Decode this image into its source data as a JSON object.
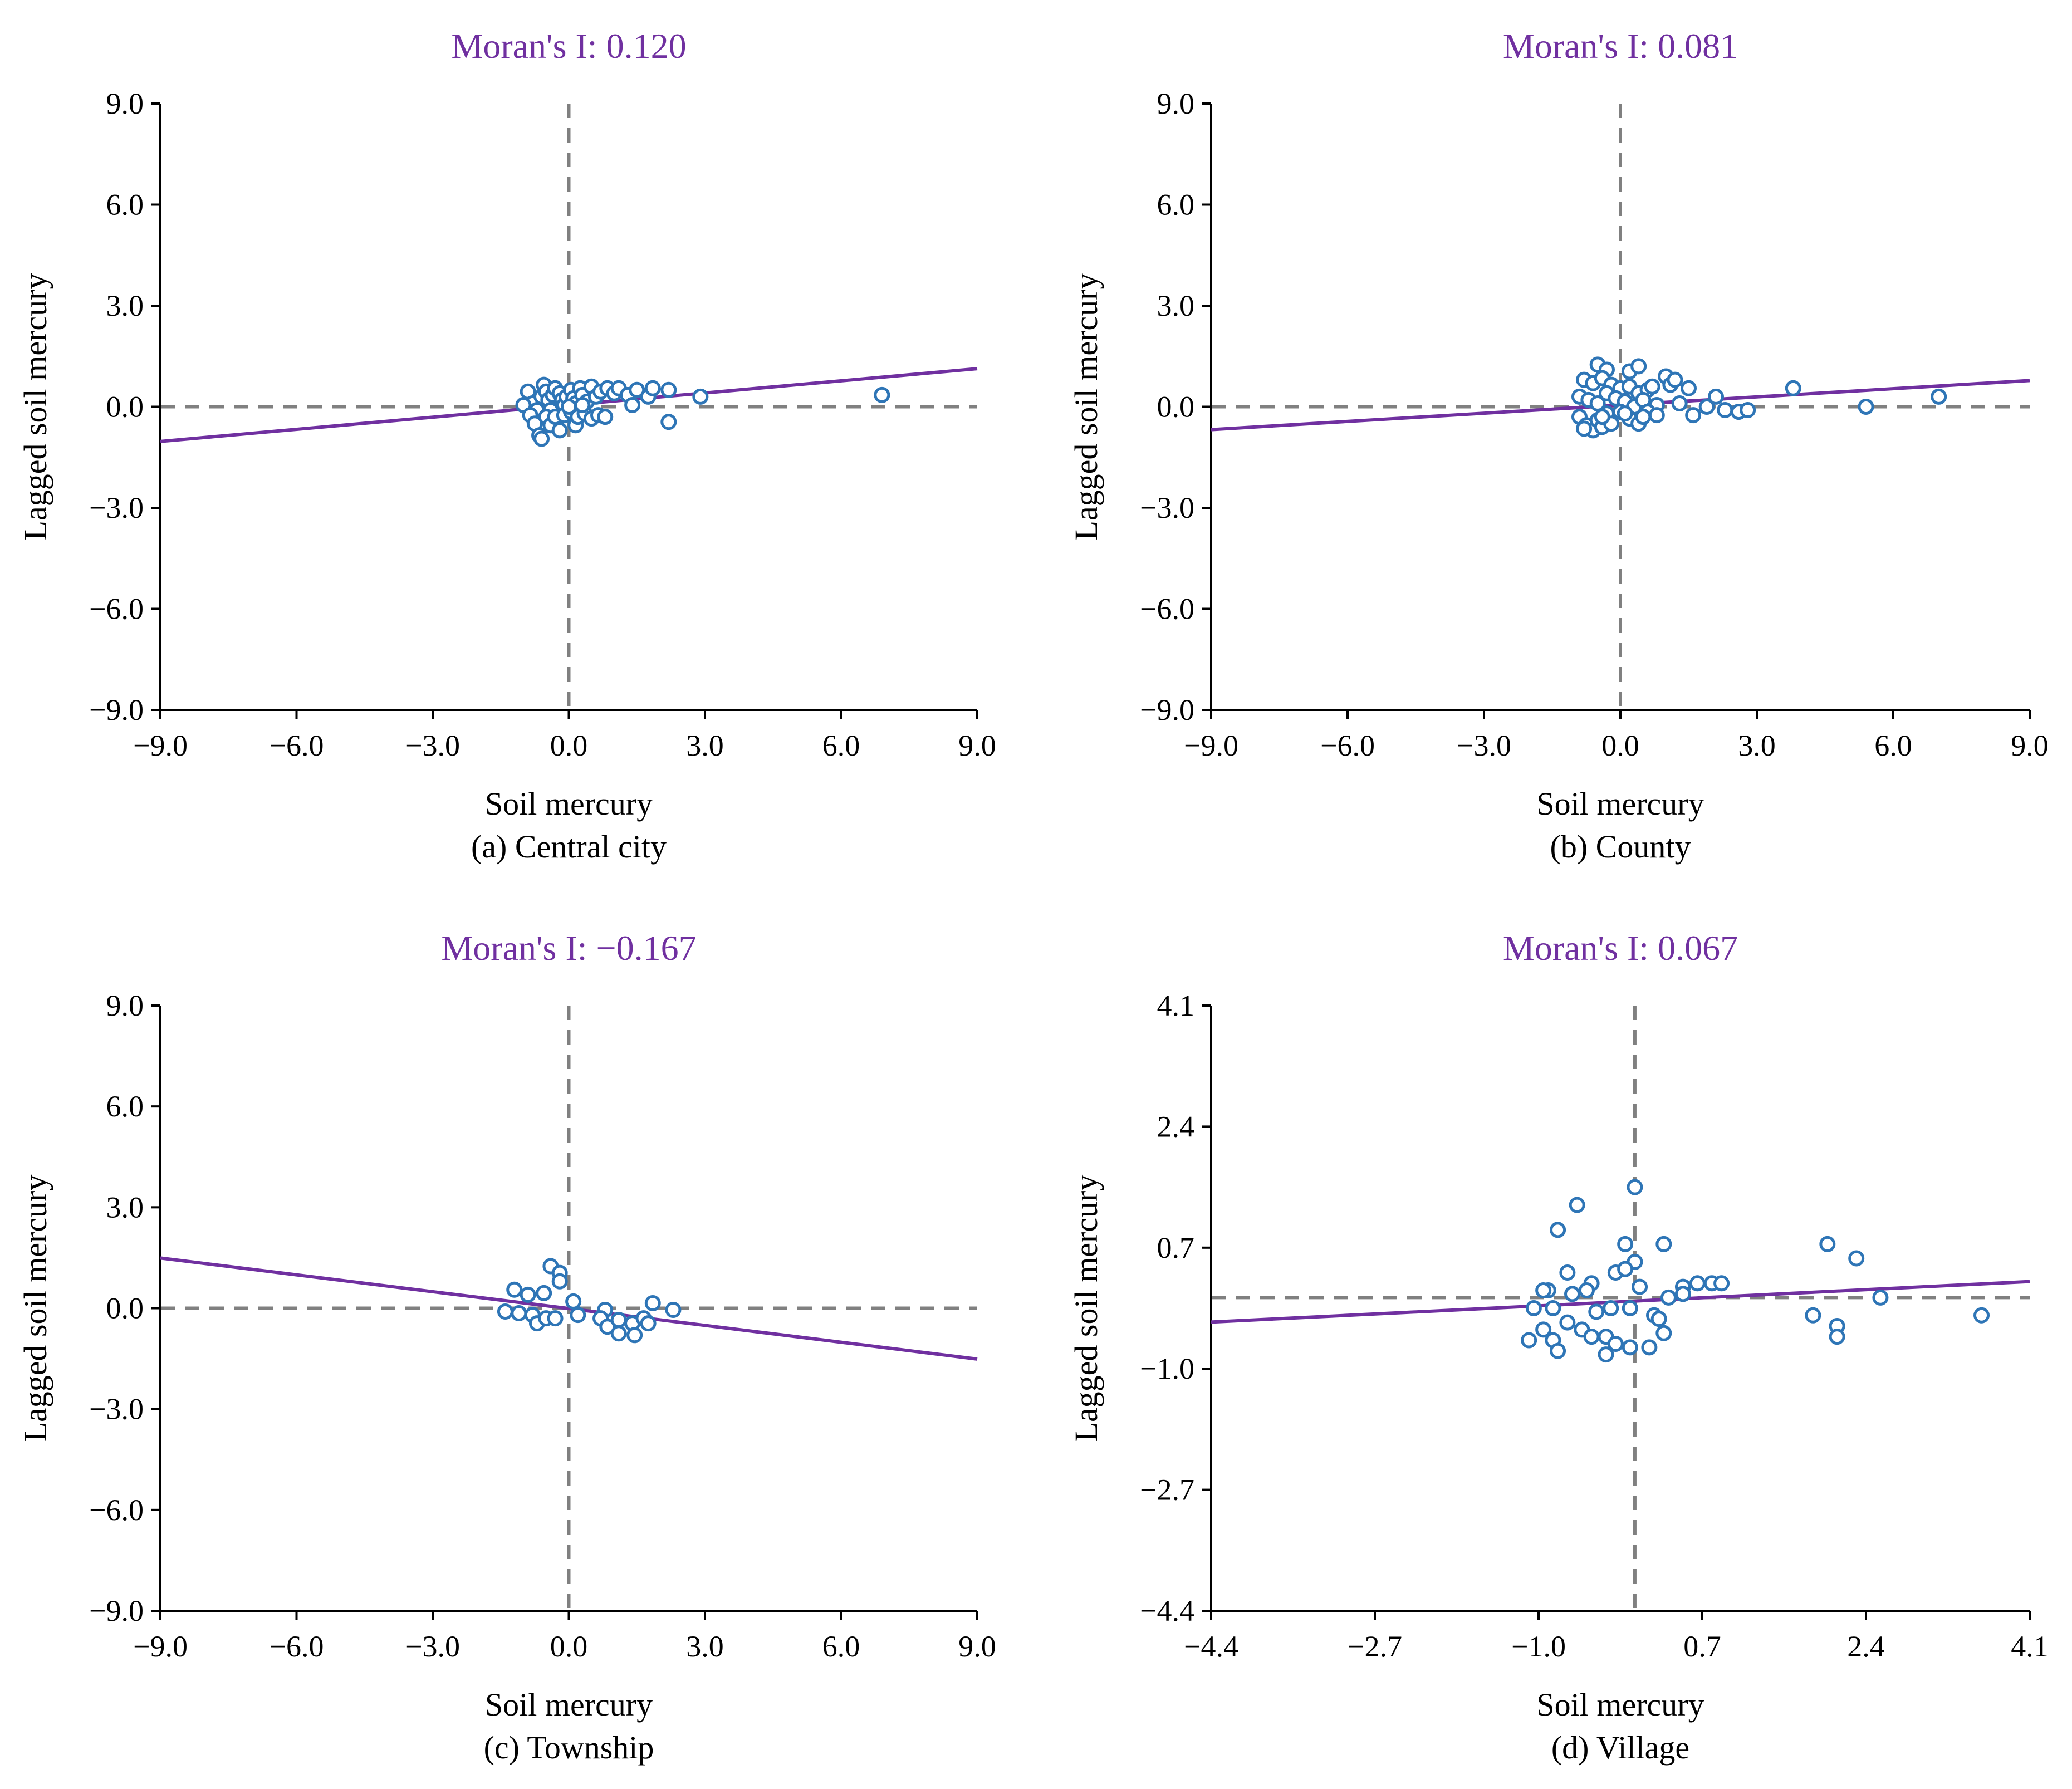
{
  "style": {
    "accent_color": "#7030A0",
    "point_color": "#2E75B6",
    "reference_line_color": "#808080",
    "axis_color": "#000000"
  },
  "chart_data": [
    {
      "type": "scatter",
      "title": "Moran's I: 0.120",
      "caption": "(a) Central city",
      "xlabel": "Soil mercury",
      "ylabel": "Lagged soil mercury",
      "xlim": [
        -9.0,
        9.0
      ],
      "ylim": [
        -9.0,
        9.0
      ],
      "xticks": [
        -9.0,
        -6.0,
        -3.0,
        0.0,
        3.0,
        6.0,
        9.0
      ],
      "yticks": [
        -9.0,
        -6.0,
        -3.0,
        0.0,
        3.0,
        6.0,
        9.0
      ],
      "xtick_labels": [
        "−9.0",
        "−6.0",
        "−3.0",
        "0.0",
        "3.0",
        "6.0",
        "9.0"
      ],
      "ytick_labels": [
        "−9.0",
        "−6.0",
        "−3.0",
        "0.0",
        "3.0",
        "6.0",
        "9.0"
      ],
      "fit_line": {
        "slope": 0.12,
        "intercept": 0.05
      },
      "points": [
        [
          -0.9,
          0.45
        ],
        [
          -0.8,
          0.1
        ],
        [
          -0.7,
          -0.1
        ],
        [
          -0.6,
          0.3
        ],
        [
          -0.55,
          0.65
        ],
        [
          -0.5,
          0.45
        ],
        [
          -0.45,
          0.2
        ],
        [
          -0.4,
          -0.1
        ],
        [
          -0.35,
          0.35
        ],
        [
          -0.3,
          0.55
        ],
        [
          -0.2,
          0.4
        ],
        [
          -0.15,
          0.2
        ],
        [
          -0.1,
          0.05
        ],
        [
          -0.05,
          0.3
        ],
        [
          0.05,
          0.5
        ],
        [
          0.1,
          0.25
        ],
        [
          0.15,
          0.1
        ],
        [
          0.25,
          0.55
        ],
        [
          0.3,
          0.35
        ],
        [
          0.4,
          0.15
        ],
        [
          0.5,
          0.6
        ],
        [
          0.6,
          0.3
        ],
        [
          0.7,
          0.45
        ],
        [
          0.85,
          0.55
        ],
        [
          1.0,
          0.4
        ],
        [
          1.1,
          0.55
        ],
        [
          1.3,
          0.35
        ],
        [
          1.5,
          0.5
        ],
        [
          1.75,
          0.3
        ],
        [
          1.85,
          0.55
        ],
        [
          2.2,
          0.5
        ],
        [
          2.9,
          0.3
        ],
        [
          6.9,
          0.35
        ],
        [
          -1.0,
          0.05
        ],
        [
          -0.85,
          -0.25
        ],
        [
          -0.75,
          -0.5
        ],
        [
          -0.65,
          -0.85
        ],
        [
          -0.6,
          -0.95
        ],
        [
          -0.5,
          -0.3
        ],
        [
          -0.4,
          -0.55
        ],
        [
          -0.3,
          -0.3
        ],
        [
          -0.2,
          -0.7
        ],
        [
          -0.1,
          -0.25
        ],
        [
          0.05,
          -0.15
        ],
        [
          0.15,
          -0.55
        ],
        [
          0.2,
          -0.3
        ],
        [
          0.35,
          -0.2
        ],
        [
          0.5,
          -0.35
        ],
        [
          0.65,
          -0.25
        ],
        [
          0.8,
          -0.3
        ],
        [
          1.4,
          0.05
        ],
        [
          2.2,
          -0.45
        ],
        [
          0.0,
          0.0
        ],
        [
          0.3,
          0.05
        ]
      ]
    },
    {
      "type": "scatter",
      "title": "Moran's I: 0.081",
      "caption": "(b) County",
      "xlabel": "Soil mercury",
      "ylabel": "Lagged soil mercury",
      "xlim": [
        -9.0,
        9.0
      ],
      "ylim": [
        -9.0,
        9.0
      ],
      "xticks": [
        -9.0,
        -6.0,
        -3.0,
        0.0,
        3.0,
        6.0,
        9.0
      ],
      "yticks": [
        -9.0,
        -6.0,
        -3.0,
        0.0,
        3.0,
        6.0,
        9.0
      ],
      "xtick_labels": [
        "−9.0",
        "−6.0",
        "−3.0",
        "0.0",
        "3.0",
        "6.0",
        "9.0"
      ],
      "ytick_labels": [
        "−9.0",
        "−6.0",
        "−3.0",
        "0.0",
        "3.0",
        "6.0",
        "9.0"
      ],
      "fit_line": {
        "slope": 0.081,
        "intercept": 0.05
      },
      "points": [
        [
          -0.5,
          1.25
        ],
        [
          -0.3,
          1.1
        ],
        [
          0.2,
          1.05
        ],
        [
          0.4,
          1.2
        ],
        [
          -0.8,
          0.8
        ],
        [
          -0.6,
          0.7
        ],
        [
          -0.4,
          0.85
        ],
        [
          -0.2,
          0.65
        ],
        [
          0.0,
          0.55
        ],
        [
          0.2,
          0.6
        ],
        [
          0.4,
          0.4
        ],
        [
          0.6,
          0.5
        ],
        [
          0.7,
          0.6
        ],
        [
          1.0,
          0.9
        ],
        [
          1.1,
          0.65
        ],
        [
          1.2,
          0.8
        ],
        [
          1.5,
          0.55
        ],
        [
          2.1,
          0.3
        ],
        [
          3.8,
          0.55
        ],
        [
          -0.9,
          0.3
        ],
        [
          -0.7,
          0.2
        ],
        [
          -0.5,
          0.1
        ],
        [
          -0.3,
          0.4
        ],
        [
          -0.1,
          0.25
        ],
        [
          0.1,
          0.15
        ],
        [
          0.3,
          0.0
        ],
        [
          0.5,
          0.2
        ],
        [
          0.8,
          0.05
        ],
        [
          1.3,
          0.1
        ],
        [
          1.9,
          0.0
        ],
        [
          2.3,
          -0.1
        ],
        [
          2.6,
          -0.15
        ],
        [
          2.8,
          -0.1
        ],
        [
          5.4,
          0.0
        ],
        [
          7.0,
          0.3
        ],
        [
          -0.9,
          -0.3
        ],
        [
          -0.75,
          -0.55
        ],
        [
          -0.6,
          -0.7
        ],
        [
          -0.5,
          -0.4
        ],
        [
          -0.4,
          -0.6
        ],
        [
          -0.3,
          -0.2
        ],
        [
          -0.2,
          -0.5
        ],
        [
          0.0,
          -0.15
        ],
        [
          0.2,
          -0.35
        ],
        [
          0.4,
          -0.5
        ],
        [
          0.6,
          -0.15
        ],
        [
          0.8,
          -0.25
        ],
        [
          1.6,
          -0.25
        ],
        [
          -0.8,
          -0.65
        ],
        [
          -0.4,
          -0.3
        ],
        [
          0.1,
          -0.2
        ],
        [
          0.5,
          -0.3
        ]
      ]
    },
    {
      "type": "scatter",
      "title": "Moran's I: −0.167",
      "caption": "(c) Township",
      "xlabel": "Soil mercury",
      "ylabel": "Lagged soil mercury",
      "xlim": [
        -9.0,
        9.0
      ],
      "ylim": [
        -9.0,
        9.0
      ],
      "xticks": [
        -9.0,
        -6.0,
        -3.0,
        0.0,
        3.0,
        6.0,
        9.0
      ],
      "yticks": [
        -9.0,
        -6.0,
        -3.0,
        0.0,
        3.0,
        6.0,
        9.0
      ],
      "xtick_labels": [
        "−9.0",
        "−6.0",
        "−3.0",
        "0.0",
        "3.0",
        "6.0",
        "9.0"
      ],
      "ytick_labels": [
        "−9.0",
        "−6.0",
        "−3.0",
        "0.0",
        "3.0",
        "6.0",
        "9.0"
      ],
      "fit_line": {
        "slope": -0.167,
        "intercept": -0.01
      },
      "points": [
        [
          -0.4,
          1.25
        ],
        [
          -0.2,
          1.05
        ],
        [
          -0.2,
          0.8
        ],
        [
          -1.2,
          0.55
        ],
        [
          -0.9,
          0.4
        ],
        [
          -0.55,
          0.45
        ],
        [
          0.1,
          0.2
        ],
        [
          -1.4,
          -0.1
        ],
        [
          -1.1,
          -0.15
        ],
        [
          -0.8,
          -0.2
        ],
        [
          -0.7,
          -0.45
        ],
        [
          -0.5,
          -0.3
        ],
        [
          -0.3,
          -0.3
        ],
        [
          0.2,
          -0.2
        ],
        [
          0.8,
          -0.05
        ],
        [
          0.7,
          -0.3
        ],
        [
          0.85,
          -0.55
        ],
        [
          1.1,
          -0.35
        ],
        [
          1.1,
          -0.75
        ],
        [
          1.4,
          -0.45
        ],
        [
          1.45,
          -0.8
        ],
        [
          1.65,
          -0.3
        ],
        [
          1.75,
          -0.45
        ],
        [
          1.85,
          0.15
        ],
        [
          2.3,
          -0.05
        ]
      ]
    },
    {
      "type": "scatter",
      "title": "Moran's I: 0.067",
      "caption": "(d) Village",
      "xlabel": "Soil mercury",
      "ylabel": "Lagged soil mercury",
      "xlim": [
        -4.4,
        4.1
      ],
      "ylim": [
        -4.4,
        4.1
      ],
      "xticks": [
        -4.4,
        -2.7,
        -1.0,
        0.7,
        2.4,
        4.1
      ],
      "yticks": [
        -4.4,
        -2.7,
        -1.0,
        0.7,
        2.4,
        4.1
      ],
      "xtick_labels": [
        "−4.4",
        "−2.7",
        "−1.0",
        "0.7",
        "2.4",
        "4.1"
      ],
      "ytick_labels": [
        "−4.4",
        "−2.7",
        "−1.0",
        "0.7",
        "2.4",
        "4.1"
      ],
      "fit_line": {
        "slope": 0.067,
        "intercept": -0.05
      },
      "points": [
        [
          0.0,
          1.55
        ],
        [
          -0.6,
          1.3
        ],
        [
          -0.8,
          0.95
        ],
        [
          -0.1,
          0.75
        ],
        [
          0.3,
          0.75
        ],
        [
          0.0,
          0.5
        ],
        [
          -0.2,
          0.35
        ],
        [
          -0.45,
          0.2
        ],
        [
          -0.7,
          0.35
        ],
        [
          -0.9,
          0.1
        ],
        [
          -0.95,
          0.1
        ],
        [
          -0.85,
          -0.15
        ],
        [
          -1.05,
          -0.15
        ],
        [
          -0.65,
          0.05
        ],
        [
          -0.5,
          0.1
        ],
        [
          -0.4,
          -0.2
        ],
        [
          -0.25,
          -0.15
        ],
        [
          -0.1,
          0.4
        ],
        [
          0.05,
          0.15
        ],
        [
          0.2,
          -0.25
        ],
        [
          0.25,
          -0.3
        ],
        [
          0.35,
          0.0
        ],
        [
          0.5,
          0.15
        ],
        [
          0.65,
          0.2
        ],
        [
          0.8,
          0.2
        ],
        [
          0.5,
          0.05
        ],
        [
          -0.05,
          -0.15
        ],
        [
          -1.1,
          -0.6
        ],
        [
          -0.95,
          -0.45
        ],
        [
          -0.85,
          -0.6
        ],
        [
          -0.7,
          -0.35
        ],
        [
          -0.55,
          -0.45
        ],
        [
          -0.45,
          -0.55
        ],
        [
          -0.3,
          -0.55
        ],
        [
          -0.2,
          -0.65
        ],
        [
          -0.05,
          -0.7
        ],
        [
          0.15,
          -0.7
        ],
        [
          -0.8,
          -0.75
        ],
        [
          -0.3,
          -0.8
        ],
        [
          0.9,
          0.2
        ],
        [
          2.0,
          0.75
        ],
        [
          2.3,
          0.55
        ],
        [
          2.55,
          0.0
        ],
        [
          1.85,
          -0.25
        ],
        [
          2.1,
          -0.4
        ],
        [
          2.1,
          -0.55
        ],
        [
          3.6,
          -0.25
        ],
        [
          0.3,
          -0.5
        ]
      ]
    }
  ]
}
